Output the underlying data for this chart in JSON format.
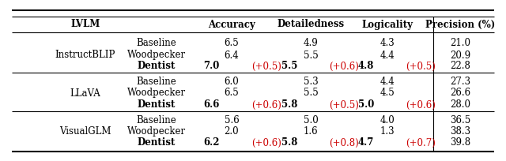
{
  "groups": [
    {
      "model": "InstructBLIP",
      "rows": [
        {
          "method": "Baseline",
          "acc": "6.5",
          "det": "4.9",
          "log": "4.3",
          "prec": "21.0",
          "dentist": false
        },
        {
          "method": "Woodpecker",
          "acc": "6.4",
          "det": "5.5",
          "log": "4.4",
          "prec": "20.9",
          "dentist": false
        },
        {
          "method": "Dentist",
          "acc": "7.0",
          "acc_d": "+0.5",
          "det": "5.5",
          "det_d": "+0.6",
          "log": "4.8",
          "log_d": "+0.5",
          "prec": "22.8",
          "dentist": true
        }
      ]
    },
    {
      "model": "LLaVA",
      "rows": [
        {
          "method": "Baseline",
          "acc": "6.0",
          "det": "5.3",
          "log": "4.4",
          "prec": "27.3",
          "dentist": false
        },
        {
          "method": "Woodpecker",
          "acc": "6.5",
          "det": "5.5",
          "log": "4.5",
          "prec": "26.6",
          "dentist": false
        },
        {
          "method": "Dentist",
          "acc": "6.6",
          "acc_d": "+0.6",
          "det": "5.8",
          "det_d": "+0.5",
          "log": "5.0",
          "log_d": "+0.6",
          "prec": "28.0",
          "dentist": true
        }
      ]
    },
    {
      "model": "VisualGLM",
      "rows": [
        {
          "method": "Baseline",
          "acc": "5.6",
          "det": "5.0",
          "log": "4.0",
          "prec": "36.5",
          "dentist": false
        },
        {
          "method": "Woodpecker",
          "acc": "2.0",
          "det": "1.6",
          "log": "1.3",
          "prec": "38.3",
          "dentist": false
        },
        {
          "method": "Dentist",
          "acc": "6.2",
          "acc_d": "+0.6",
          "det": "5.8",
          "det_d": "+0.8",
          "log": "4.7",
          "log_d": "+0.7",
          "prec": "39.8",
          "dentist": true
        }
      ]
    }
  ],
  "delta_color": "#cc0000",
  "line_color": "#000000",
  "fontsize": 8.5,
  "fig_width": 6.4,
  "fig_height": 2.05
}
